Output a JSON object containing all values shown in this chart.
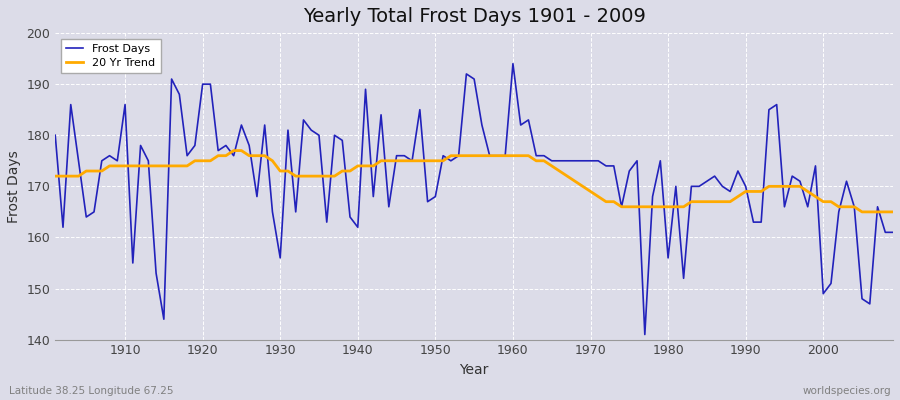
{
  "title": "Yearly Total Frost Days 1901 - 2009",
  "xlabel": "Year",
  "ylabel": "Frost Days",
  "footnote_left": "Latitude 38.25 Longitude 67.25",
  "footnote_right": "worldspecies.org",
  "ylim": [
    140,
    200
  ],
  "xlim": [
    1901,
    2009
  ],
  "line_color": "#2222bb",
  "trend_color": "#ffaa00",
  "bg_color": "#dcdce8",
  "plot_bg": "#dcdce8",
  "years": [
    1901,
    1902,
    1903,
    1904,
    1905,
    1906,
    1907,
    1908,
    1909,
    1910,
    1911,
    1912,
    1913,
    1914,
    1915,
    1916,
    1917,
    1918,
    1919,
    1920,
    1921,
    1922,
    1923,
    1924,
    1925,
    1926,
    1927,
    1928,
    1929,
    1930,
    1931,
    1932,
    1933,
    1934,
    1935,
    1936,
    1937,
    1938,
    1939,
    1940,
    1941,
    1942,
    1943,
    1944,
    1945,
    1946,
    1947,
    1948,
    1949,
    1950,
    1951,
    1952,
    1953,
    1954,
    1955,
    1956,
    1957,
    1958,
    1959,
    1960,
    1961,
    1962,
    1963,
    1964,
    1965,
    1966,
    1967,
    1968,
    1969,
    1970,
    1971,
    1972,
    1973,
    1974,
    1975,
    1976,
    1977,
    1978,
    1979,
    1980,
    1981,
    1982,
    1983,
    1984,
    1985,
    1986,
    1987,
    1988,
    1989,
    1990,
    1991,
    1992,
    1993,
    1994,
    1995,
    1996,
    1997,
    1998,
    1999,
    2000,
    2001,
    2002,
    2003,
    2004,
    2005,
    2006,
    2007,
    2008,
    2009
  ],
  "frost_days": [
    180,
    162,
    186,
    175,
    164,
    165,
    175,
    176,
    175,
    186,
    155,
    178,
    175,
    153,
    144,
    191,
    188,
    176,
    178,
    190,
    190,
    177,
    178,
    176,
    182,
    178,
    168,
    182,
    165,
    156,
    181,
    165,
    183,
    181,
    180,
    163,
    180,
    179,
    164,
    162,
    189,
    168,
    184,
    166,
    176,
    176,
    175,
    185,
    167,
    168,
    176,
    175,
    176,
    192,
    191,
    182,
    176,
    176,
    176,
    194,
    182,
    183,
    176,
    176,
    175,
    175,
    175,
    175,
    175,
    175,
    175,
    174,
    174,
    166,
    173,
    175,
    141,
    168,
    175,
    156,
    170,
    152,
    170,
    170,
    171,
    172,
    170,
    169,
    173,
    170,
    163,
    163,
    185,
    186,
    166,
    172,
    171,
    166,
    174,
    149,
    151,
    165,
    171,
    166,
    148,
    147,
    166,
    161,
    161
  ],
  "trend": [
    172,
    172,
    172,
    172,
    173,
    173,
    173,
    174,
    174,
    174,
    174,
    174,
    174,
    174,
    174,
    174,
    174,
    174,
    175,
    175,
    175,
    176,
    176,
    177,
    177,
    176,
    176,
    176,
    175,
    173,
    173,
    172,
    172,
    172,
    172,
    172,
    172,
    173,
    173,
    174,
    174,
    174,
    175,
    175,
    175,
    175,
    175,
    175,
    175,
    175,
    175,
    176,
    176,
    176,
    176,
    176,
    176,
    176,
    176,
    176,
    176,
    176,
    175,
    175,
    174,
    173,
    172,
    171,
    170,
    169,
    168,
    167,
    167,
    166,
    166,
    166,
    166,
    166,
    166,
    166,
    166,
    166,
    167,
    167,
    167,
    167,
    167,
    167,
    168,
    169,
    169,
    169,
    170,
    170,
    170,
    170,
    170,
    169,
    168,
    167,
    167,
    166,
    166,
    166,
    165,
    165,
    165,
    165,
    165
  ]
}
